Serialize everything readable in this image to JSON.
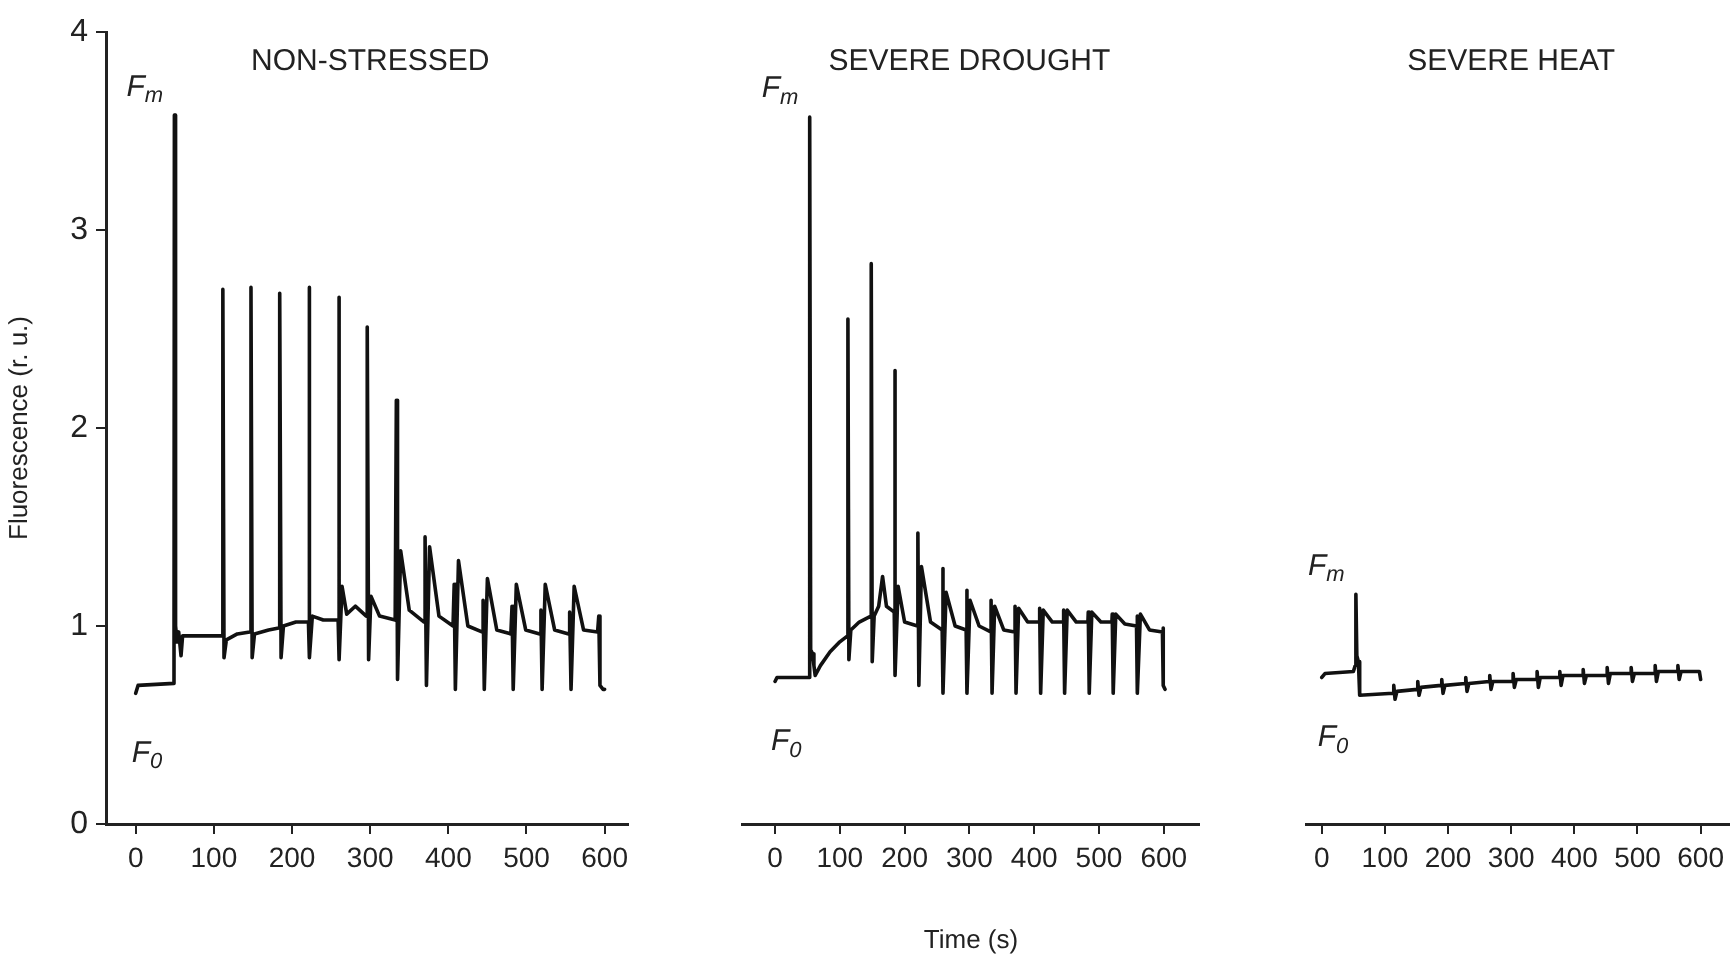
{
  "chart_data": [
    {
      "type": "line",
      "title": "NON-STRESSED",
      "ylabel": "Fluorescence (r. u.)",
      "xlim": [
        -38,
        630
      ],
      "xticks": [
        0,
        100,
        200,
        300,
        400,
        500,
        600
      ],
      "ylim": [
        0,
        4
      ],
      "yticks": [
        0,
        1,
        2,
        3,
        4
      ],
      "grid": false,
      "marker": "none",
      "line_style": "solid",
      "series": [
        {
          "color": "#111111",
          "x": [
            0,
            3,
            49,
            49.5,
            51,
            53,
            55,
            58,
            60,
            110,
            111,
            111.5,
            113,
            116,
            130,
            146,
            147,
            147.5,
            149,
            152,
            170,
            183,
            184,
            184.5,
            186,
            189,
            205,
            220,
            221,
            221.5,
            223,
            226,
            240,
            258,
            259,
            259.5,
            261,
            264,
            270,
            281,
            295,
            296,
            296.5,
            298,
            301,
            312,
            332,
            333,
            333.5,
            335,
            339,
            350,
            369,
            370,
            370.5,
            372,
            376,
            388,
            406,
            407,
            407.5,
            409,
            413,
            425,
            443,
            444,
            444.5,
            446,
            450,
            462,
            480,
            481,
            481.5,
            483,
            487,
            499,
            517,
            518,
            518.5,
            520,
            524,
            536,
            554,
            555,
            555.5,
            557,
            561,
            573,
            591,
            592.5,
            594,
            598,
            600
          ],
          "values": [
            0.66,
            0.7,
            0.71,
            3.58,
            1.0,
            0.92,
            0.97,
            0.85,
            0.95,
            0.95,
            0.95,
            2.7,
            0.84,
            0.93,
            0.96,
            0.97,
            0.97,
            2.71,
            0.84,
            0.96,
            0.98,
            0.99,
            0.99,
            2.68,
            0.84,
            1.0,
            1.02,
            1.02,
            1.02,
            2.71,
            0.84,
            1.05,
            1.03,
            1.03,
            1.03,
            2.66,
            0.83,
            1.2,
            1.06,
            1.1,
            1.05,
            1.05,
            2.51,
            0.83,
            1.15,
            1.05,
            1.03,
            1.03,
            2.14,
            0.73,
            1.38,
            1.08,
            1.02,
            1.02,
            1.45,
            0.7,
            1.4,
            1.05,
            1.0,
            1.0,
            1.21,
            0.68,
            1.33,
            1.0,
            0.97,
            0.97,
            1.13,
            0.68,
            1.24,
            0.98,
            0.96,
            0.96,
            1.1,
            0.68,
            1.21,
            0.98,
            0.96,
            0.96,
            1.08,
            0.68,
            1.21,
            0.98,
            0.96,
            0.96,
            1.07,
            0.68,
            1.2,
            0.98,
            0.97,
            1.05,
            0.7,
            0.68,
            0.68
          ]
        }
      ],
      "annotations": [
        {
          "text": "F$_{m}$",
          "x": 49.5,
          "y": 3.58
        },
        {
          "text": "F$_{0}$",
          "x": 0,
          "y": 0.66
        }
      ],
      "tick_labels": true
    },
    {
      "type": "line",
      "title": "SEVERE DROUGHT",
      "xlabel": "Time (s)",
      "xlim": [
        -51,
        656
      ],
      "xticks": [
        0,
        100,
        200,
        300,
        400,
        500,
        600
      ],
      "ylim": [
        0,
        4
      ],
      "grid": false,
      "marker": "none",
      "line_style": "solid",
      "tick_labels": "x",
      "series": [
        {
          "color": "#111111",
          "x": [
            0,
            3,
            53,
            53.5,
            55,
            58,
            60,
            62,
            70,
            85,
            100,
            112,
            112.5,
            114,
            117,
            130,
            148,
            148.5,
            150,
            153,
            160,
            166,
            172,
            184,
            184.5,
            186,
            190,
            200,
            220,
            220.5,
            222,
            226,
            240,
            258,
            258.5,
            260,
            264,
            278,
            295,
            295.5,
            297,
            301,
            315,
            333,
            333.5,
            335,
            339,
            353,
            370,
            370.5,
            372,
            376,
            390,
            408,
            408.5,
            410,
            414,
            428,
            445,
            445.5,
            447,
            451,
            465,
            483,
            483.5,
            485,
            489,
            503,
            520,
            520.5,
            522,
            526,
            540,
            558,
            558.5,
            560,
            564,
            578,
            598,
            598.5,
            600,
            602
          ],
          "values": [
            0.72,
            0.74,
            0.74,
            3.57,
            0.88,
            0.86,
            0.8,
            0.75,
            0.8,
            0.87,
            0.92,
            0.95,
            2.55,
            0.83,
            0.98,
            1.02,
            1.05,
            2.83,
            0.82,
            1.05,
            1.1,
            1.25,
            1.1,
            1.07,
            2.29,
            0.75,
            1.2,
            1.02,
            1.0,
            1.47,
            0.7,
            1.3,
            1.02,
            0.98,
            1.29,
            0.66,
            1.17,
            1.0,
            0.98,
            1.18,
            0.66,
            1.13,
            1.0,
            0.97,
            1.13,
            0.66,
            1.1,
            0.98,
            0.97,
            1.1,
            0.66,
            1.09,
            1.02,
            1.02,
            1.09,
            0.66,
            1.08,
            1.02,
            1.02,
            1.08,
            0.66,
            1.08,
            1.02,
            1.02,
            1.07,
            0.66,
            1.07,
            1.02,
            1.02,
            1.06,
            0.66,
            1.06,
            1.01,
            1.0,
            1.05,
            0.66,
            1.06,
            0.98,
            0.97,
            0.99,
            0.7,
            0.68
          ]
        }
      ],
      "annotations": [
        {
          "text": "F$_{m}$",
          "x": 53.5,
          "y": 3.57
        },
        {
          "text": "F$_{0}$",
          "x": 0,
          "y": 0.72
        }
      ]
    },
    {
      "type": "line",
      "title": "SEVERE HEAT",
      "xlim": [
        -25,
        645
      ],
      "xticks": [
        0,
        100,
        200,
        300,
        400,
        500,
        600
      ],
      "ylim": [
        0,
        4
      ],
      "grid": false,
      "marker": "none",
      "line_style": "solid",
      "tick_labels": "x",
      "series": [
        {
          "color": "#111111",
          "x": [
            0,
            5,
            50,
            53,
            54,
            55.5,
            58,
            60,
            113,
            114,
            116,
            119,
            151,
            152,
            154,
            157,
            189,
            190,
            192,
            195,
            227,
            228,
            230,
            233,
            265,
            266,
            268,
            271,
            302,
            303,
            305,
            308,
            340,
            341,
            343,
            346,
            376,
            377,
            379,
            382,
            413,
            414,
            416,
            419,
            451,
            452,
            454,
            457,
            489,
            490,
            492,
            495,
            527,
            528,
            530,
            533,
            563,
            564,
            566,
            569,
            598,
            600
          ],
          "values": [
            0.74,
            0.76,
            0.77,
            0.8,
            1.16,
            0.85,
            0.82,
            0.65,
            0.66,
            0.7,
            0.63,
            0.67,
            0.68,
            0.72,
            0.65,
            0.69,
            0.7,
            0.73,
            0.66,
            0.7,
            0.71,
            0.74,
            0.67,
            0.71,
            0.72,
            0.75,
            0.68,
            0.72,
            0.72,
            0.76,
            0.69,
            0.73,
            0.73,
            0.77,
            0.69,
            0.74,
            0.74,
            0.77,
            0.7,
            0.75,
            0.75,
            0.78,
            0.71,
            0.75,
            0.75,
            0.79,
            0.71,
            0.76,
            0.76,
            0.79,
            0.72,
            0.76,
            0.76,
            0.8,
            0.72,
            0.77,
            0.77,
            0.8,
            0.73,
            0.77,
            0.77,
            0.73
          ]
        }
      ],
      "annotations": [
        {
          "text": "F$_{m}$",
          "x": 54,
          "y": 1.16
        },
        {
          "text": "F$_{0}$",
          "x": 0,
          "y": 0.74
        }
      ]
    }
  ]
}
